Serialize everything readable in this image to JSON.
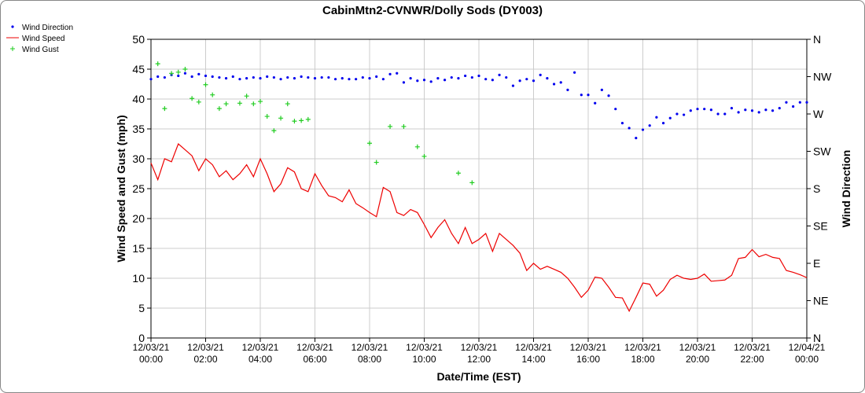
{
  "chart_data": {
    "type": "line",
    "title": "CabinMtn2-CVNWR/Dolly Sods (DY003)",
    "xlabel": "Date/Time (EST)",
    "ylabel": "Wind Speed and Gust (mph)",
    "y2label": "Wind Direction",
    "grid": true,
    "legend": "top-left",
    "x": [
      "12/03/21 00:00",
      "12/03/21 00:15",
      "12/03/21 00:30",
      "12/03/21 00:45",
      "12/03/21 01:00",
      "12/03/21 01:15",
      "12/03/21 01:30",
      "12/03/21 01:45",
      "12/03/21 02:00",
      "12/03/21 02:15",
      "12/03/21 02:30",
      "12/03/21 02:45",
      "12/03/21 03:00",
      "12/03/21 03:15",
      "12/03/21 03:30",
      "12/03/21 03:45",
      "12/03/21 04:00",
      "12/03/21 04:15",
      "12/03/21 04:30",
      "12/03/21 04:45",
      "12/03/21 05:00",
      "12/03/21 05:15",
      "12/03/21 05:30",
      "12/03/21 05:45",
      "12/03/21 06:00",
      "12/03/21 06:15",
      "12/03/21 06:30",
      "12/03/21 06:45",
      "12/03/21 07:00",
      "12/03/21 07:15",
      "12/03/21 07:30",
      "12/03/21 07:45",
      "12/03/21 08:00",
      "12/03/21 08:15",
      "12/03/21 08:30",
      "12/03/21 08:45",
      "12/03/21 09:00",
      "12/03/21 09:15",
      "12/03/21 09:30",
      "12/03/21 09:45",
      "12/03/21 10:00",
      "12/03/21 10:15",
      "12/03/21 10:30",
      "12/03/21 10:45",
      "12/03/21 11:00",
      "12/03/21 11:15",
      "12/03/21 11:30",
      "12/03/21 11:45",
      "12/03/21 12:00",
      "12/03/21 12:15",
      "12/03/21 12:30",
      "12/03/21 12:45",
      "12/03/21 13:00",
      "12/03/21 13:15",
      "12/03/21 13:30",
      "12/03/21 13:45",
      "12/03/21 14:00",
      "12/03/21 14:15",
      "12/03/21 14:30",
      "12/03/21 14:45",
      "12/03/21 15:00",
      "12/03/21 15:15",
      "12/03/21 15:30",
      "12/03/21 15:45",
      "12/03/21 16:00",
      "12/03/21 16:15",
      "12/03/21 16:30",
      "12/03/21 16:45",
      "12/03/21 17:00",
      "12/03/21 17:15",
      "12/03/21 17:30",
      "12/03/21 17:45",
      "12/03/21 18:00",
      "12/03/21 18:15",
      "12/03/21 18:30",
      "12/03/21 18:45",
      "12/03/21 19:00",
      "12/03/21 19:15",
      "12/03/21 19:30",
      "12/03/21 19:45",
      "12/03/21 20:00",
      "12/03/21 20:15",
      "12/03/21 20:30",
      "12/03/21 20:45",
      "12/03/21 21:00",
      "12/03/21 21:15",
      "12/03/21 21:30",
      "12/03/21 21:45",
      "12/03/21 22:00",
      "12/03/21 22:15",
      "12/03/21 22:30",
      "12/03/21 22:45",
      "12/03/21 23:00",
      "12/03/21 23:15",
      "12/03/21 23:30",
      "12/03/21 23:45",
      "12/04/21 00:00"
    ],
    "xlim": [
      "12/03/21 00:00",
      "12/04/21 00:00"
    ],
    "xticks": [
      "12/03/21 00:00",
      "12/03/21 02:00",
      "12/03/21 04:00",
      "12/03/21 06:00",
      "12/03/21 08:00",
      "12/03/21 10:00",
      "12/03/21 12:00",
      "12/03/21 14:00",
      "12/03/21 16:00",
      "12/03/21 18:00",
      "12/03/21 20:00",
      "12/03/21 22:00",
      "12/04/21 00:00"
    ],
    "ylim": [
      0,
      50
    ],
    "yticks": [
      0,
      5,
      10,
      15,
      20,
      25,
      30,
      35,
      40,
      45,
      50
    ],
    "y2lim": [
      0,
      360
    ],
    "y2ticks": [
      {
        "value": 0,
        "label": "N"
      },
      {
        "value": 45,
        "label": "NE"
      },
      {
        "value": 90,
        "label": "E"
      },
      {
        "value": 135,
        "label": "SE"
      },
      {
        "value": 180,
        "label": "S"
      },
      {
        "value": 225,
        "label": "SW"
      },
      {
        "value": 270,
        "label": "W"
      },
      {
        "value": 315,
        "label": "NW"
      },
      {
        "value": 360,
        "label": "N"
      }
    ],
    "series": [
      {
        "name": "Wind Direction",
        "color": "#0000ee",
        "marker": "dot",
        "axis": "y2",
        "values": [
          312,
          315,
          314,
          317,
          316,
          319,
          315,
          318,
          316,
          315,
          314,
          313,
          315,
          312,
          313,
          314,
          313,
          315,
          314,
          312,
          314,
          313,
          315,
          314,
          313,
          314,
          314,
          312,
          313,
          312,
          312,
          314,
          313,
          315,
          312,
          318,
          319,
          308,
          313,
          310,
          311,
          309,
          313,
          311,
          314,
          313,
          316,
          314,
          316,
          312,
          311,
          317,
          314,
          304,
          310,
          312,
          310,
          317,
          313,
          306,
          308,
          299,
          320,
          293,
          293,
          283,
          299,
          292,
          276,
          259,
          253,
          241,
          251,
          256,
          266,
          259,
          265,
          270,
          269,
          274,
          276,
          276,
          275,
          270,
          270,
          277,
          272,
          275,
          274,
          272,
          275,
          274,
          277,
          284,
          279,
          284,
          284
        ]
      },
      {
        "name": "Wind Speed",
        "color": "#ee0000",
        "marker": "line",
        "values": [
          29.3,
          26.5,
          30,
          29.5,
          32.5,
          31.5,
          30.5,
          28,
          30,
          29,
          27,
          28,
          26.5,
          27.5,
          29,
          27,
          30,
          27.5,
          24.5,
          25.8,
          28.5,
          27.8,
          25,
          24.5,
          27.5,
          25.5,
          23.8,
          23.5,
          22.8,
          24.8,
          22.5,
          21.8,
          21,
          20.3,
          25.2,
          24.5,
          21,
          20.5,
          21.5,
          21,
          19,
          16.8,
          18.5,
          19.8,
          17.5,
          15.8,
          18.5,
          15.8,
          16.5,
          17.5,
          14.5,
          17.5,
          16.5,
          15.5,
          14.2,
          11.3,
          12.5,
          11.5,
          12,
          11.5,
          11,
          10,
          8.5,
          6.8,
          8,
          10.2,
          10,
          8.5,
          6.8,
          6.7,
          4.5,
          6.8,
          9.2,
          9,
          7,
          8,
          9.8,
          10.5,
          10,
          9.8,
          10,
          10.7,
          9.5,
          9.6,
          9.7,
          10.5,
          13.3,
          13.5,
          14.8,
          13.6,
          14,
          13.5,
          13.3,
          11.3,
          11,
          10.6,
          10.1
        ]
      },
      {
        "name": "Wind Gust",
        "color": "#22cc22",
        "marker": "plus",
        "values": [
          null,
          45.9,
          38.4,
          44.3,
          44.5,
          45,
          40.1,
          39.5,
          42.4,
          40.7,
          38.4,
          39.2,
          null,
          39.3,
          40.5,
          39.2,
          39.6,
          37.1,
          34.7,
          36.8,
          39.2,
          36.3,
          36.4,
          36.6,
          null,
          null,
          null,
          null,
          null,
          null,
          null,
          null,
          32.6,
          29.4,
          null,
          35.4,
          null,
          35.4,
          null,
          32,
          30.4,
          null,
          null,
          null,
          null,
          27.6,
          null,
          26,
          null,
          null,
          null,
          null,
          null,
          null,
          null,
          null,
          null,
          null,
          null,
          null,
          null,
          null,
          null,
          null,
          null,
          null,
          null,
          null,
          null,
          null,
          null,
          null,
          null,
          null,
          null,
          null,
          null,
          null,
          null,
          null,
          null,
          null,
          null,
          null,
          null,
          null,
          null,
          null,
          null,
          null,
          null,
          null,
          null,
          null,
          null,
          null,
          null
        ]
      }
    ]
  }
}
